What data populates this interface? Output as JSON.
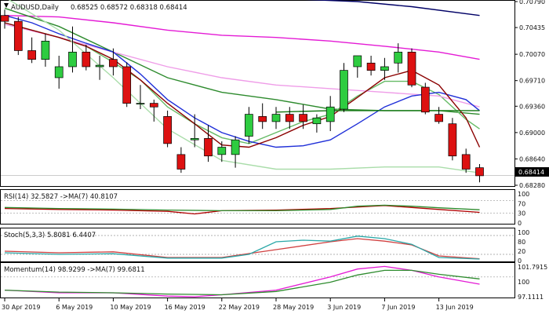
{
  "chart_data": {
    "type": "candlestick",
    "symbol_label": "AUDUSD,Daily",
    "ohlc_label": "0.68525 0.68572 0.68318 0.68414",
    "current_price": "0.68414",
    "current_price_value": 0.68414,
    "y_axis": {
      "min": 0.6828,
      "max": 0.7079,
      "ticks": [
        "0.70790",
        "0.70435",
        "0.70070",
        "0.69710",
        "0.69360",
        "0.69000",
        "0.68640",
        "0.68280"
      ]
    },
    "x_labels": [
      {
        "label": "30 Apr 2019",
        "bar": 0
      },
      {
        "label": "6 May 2019",
        "bar": 4
      },
      {
        "label": "10 May 2019",
        "bar": 8
      },
      {
        "label": "16 May 2019",
        "bar": 12
      },
      {
        "label": "22 May 2019",
        "bar": 16
      },
      {
        "label": "28 May 2019",
        "bar": 20
      },
      {
        "label": "3 Jun 2019",
        "bar": 24
      },
      {
        "label": "7 Jun 2019",
        "bar": 28
      },
      {
        "label": "13 Jun 2019",
        "bar": 32
      }
    ],
    "candles": [
      {
        "o": 0.706,
        "h": 0.7068,
        "l": 0.7042,
        "c": 0.7052
      },
      {
        "o": 0.7052,
        "h": 0.7058,
        "l": 0.7006,
        "c": 0.7012
      },
      {
        "o": 0.7012,
        "h": 0.703,
        "l": 0.6995,
        "c": 0.7
      },
      {
        "o": 0.7,
        "h": 0.7035,
        "l": 0.699,
        "c": 0.7025
      },
      {
        "o": 0.6975,
        "h": 0.7005,
        "l": 0.696,
        "c": 0.699
      },
      {
        "o": 0.699,
        "h": 0.7045,
        "l": 0.6982,
        "c": 0.701
      },
      {
        "o": 0.701,
        "h": 0.702,
        "l": 0.6985,
        "c": 0.699
      },
      {
        "o": 0.699,
        "h": 0.7005,
        "l": 0.6972,
        "c": 0.6992
      },
      {
        "o": 0.7,
        "h": 0.7015,
        "l": 0.6978,
        "c": 0.699
      },
      {
        "o": 0.699,
        "h": 0.6996,
        "l": 0.6935,
        "c": 0.694
      },
      {
        "o": 0.694,
        "h": 0.6965,
        "l": 0.6932,
        "c": 0.694
      },
      {
        "o": 0.694,
        "h": 0.6945,
        "l": 0.6915,
        "c": 0.6935
      },
      {
        "o": 0.6922,
        "h": 0.693,
        "l": 0.688,
        "c": 0.6885
      },
      {
        "o": 0.687,
        "h": 0.688,
        "l": 0.6845,
        "c": 0.685
      },
      {
        "o": 0.689,
        "h": 0.6925,
        "l": 0.688,
        "c": 0.6892
      },
      {
        "o": 0.6892,
        "h": 0.691,
        "l": 0.686,
        "c": 0.6868
      },
      {
        "o": 0.687,
        "h": 0.6888,
        "l": 0.686,
        "c": 0.688
      },
      {
        "o": 0.687,
        "h": 0.6895,
        "l": 0.6852,
        "c": 0.689
      },
      {
        "o": 0.6895,
        "h": 0.6935,
        "l": 0.6885,
        "c": 0.6925
      },
      {
        "o": 0.6922,
        "h": 0.694,
        "l": 0.6905,
        "c": 0.6915
      },
      {
        "o": 0.6915,
        "h": 0.6935,
        "l": 0.6905,
        "c": 0.6925
      },
      {
        "o": 0.6925,
        "h": 0.6935,
        "l": 0.6905,
        "c": 0.6915
      },
      {
        "o": 0.6925,
        "h": 0.6938,
        "l": 0.6905,
        "c": 0.6915
      },
      {
        "o": 0.6912,
        "h": 0.6925,
        "l": 0.69,
        "c": 0.692
      },
      {
        "o": 0.6915,
        "h": 0.695,
        "l": 0.6902,
        "c": 0.6935
      },
      {
        "o": 0.6932,
        "h": 0.6995,
        "l": 0.6928,
        "c": 0.6985
      },
      {
        "o": 0.699,
        "h": 0.7005,
        "l": 0.6975,
        "c": 0.7005
      },
      {
        "o": 0.6995,
        "h": 0.7005,
        "l": 0.6978,
        "c": 0.6985
      },
      {
        "o": 0.6985,
        "h": 0.7002,
        "l": 0.6972,
        "c": 0.699
      },
      {
        "o": 0.6995,
        "h": 0.7022,
        "l": 0.6982,
        "c": 0.701
      },
      {
        "o": 0.701,
        "h": 0.7015,
        "l": 0.6962,
        "c": 0.6965
      },
      {
        "o": 0.6962,
        "h": 0.6968,
        "l": 0.6925,
        "c": 0.6928
      },
      {
        "o": 0.6925,
        "h": 0.6935,
        "l": 0.6912,
        "c": 0.6915
      },
      {
        "o": 0.6912,
        "h": 0.692,
        "l": 0.6862,
        "c": 0.6868
      },
      {
        "o": 0.687,
        "h": 0.6878,
        "l": 0.6845,
        "c": 0.685
      },
      {
        "o": 0.6852,
        "h": 0.6857,
        "l": 0.6832,
        "c": 0.6841
      }
    ],
    "overlays": [
      {
        "color": "#000066",
        "values": [
          [
            22,
            0.7082
          ],
          [
            26,
            0.7079
          ],
          [
            30,
            0.7072
          ],
          [
            35,
            0.706
          ]
        ]
      },
      {
        "color": "#e41bd5",
        "values": [
          [
            0,
            0.706
          ],
          [
            4,
            0.7058
          ],
          [
            8,
            0.705
          ],
          [
            12,
            0.704
          ],
          [
            16,
            0.7033
          ],
          [
            20,
            0.703
          ],
          [
            24,
            0.7025
          ],
          [
            28,
            0.7018
          ],
          [
            32,
            0.701
          ],
          [
            35,
            0.7
          ]
        ]
      },
      {
        "color": "#2e8b2e",
        "values": [
          [
            0,
            0.707
          ],
          [
            4,
            0.7045
          ],
          [
            8,
            0.701
          ],
          [
            12,
            0.6975
          ],
          [
            16,
            0.6955
          ],
          [
            20,
            0.6945
          ],
          [
            24,
            0.6932
          ],
          [
            28,
            0.693
          ],
          [
            32,
            0.693
          ],
          [
            35,
            0.6925
          ]
        ]
      },
      {
        "color": "#66bb66",
        "values": [
          [
            0,
            0.705
          ],
          [
            2,
            0.704
          ],
          [
            4,
            0.703
          ],
          [
            6,
            0.7018
          ],
          [
            8,
            0.6996
          ],
          [
            10,
            0.6972
          ],
          [
            12,
            0.6935
          ],
          [
            14,
            0.6912
          ],
          [
            16,
            0.6893
          ],
          [
            18,
            0.6885
          ],
          [
            20,
            0.69
          ],
          [
            22,
            0.6915
          ],
          [
            24,
            0.6925
          ],
          [
            26,
            0.695
          ],
          [
            28,
            0.697
          ],
          [
            30,
            0.697
          ],
          [
            32,
            0.6952
          ],
          [
            34,
            0.6918
          ],
          [
            35,
            0.6905
          ]
        ]
      },
      {
        "color": "#ef9de8",
        "values": [
          [
            0,
            0.7048
          ],
          [
            4,
            0.703
          ],
          [
            8,
            0.701
          ],
          [
            12,
            0.699
          ],
          [
            16,
            0.6975
          ],
          [
            20,
            0.6965
          ],
          [
            24,
            0.696
          ],
          [
            28,
            0.6955
          ],
          [
            32,
            0.695
          ],
          [
            35,
            0.6935
          ]
        ]
      },
      {
        "color": "#1f2fd8",
        "values": [
          [
            0,
            0.706
          ],
          [
            2,
            0.705
          ],
          [
            4,
            0.7035
          ],
          [
            6,
            0.7022
          ],
          [
            8,
            0.701
          ],
          [
            10,
            0.698
          ],
          [
            12,
            0.6945
          ],
          [
            14,
            0.692
          ],
          [
            16,
            0.69
          ],
          [
            18,
            0.6888
          ],
          [
            20,
            0.688
          ],
          [
            22,
            0.6882
          ],
          [
            24,
            0.689
          ],
          [
            26,
            0.6912
          ],
          [
            28,
            0.6935
          ],
          [
            30,
            0.695
          ],
          [
            32,
            0.6955
          ],
          [
            34,
            0.6945
          ],
          [
            35,
            0.693
          ]
        ]
      },
      {
        "color": "#8b0000",
        "values": [
          [
            0,
            0.705
          ],
          [
            2,
            0.704
          ],
          [
            4,
            0.703
          ],
          [
            6,
            0.7018
          ],
          [
            8,
            0.7
          ],
          [
            10,
            0.6972
          ],
          [
            12,
            0.694
          ],
          [
            14,
            0.6912
          ],
          [
            16,
            0.6883
          ],
          [
            18,
            0.688
          ],
          [
            20,
            0.6893
          ],
          [
            22,
            0.691
          ],
          [
            24,
            0.6922
          ],
          [
            26,
            0.6948
          ],
          [
            28,
            0.6975
          ],
          [
            30,
            0.6985
          ],
          [
            32,
            0.6965
          ],
          [
            34,
            0.692
          ],
          [
            35,
            0.688
          ]
        ]
      },
      {
        "color": "#aaddaa",
        "values": [
          [
            0,
            0.7085
          ],
          [
            4,
            0.704
          ],
          [
            8,
            0.6975
          ],
          [
            12,
            0.6905
          ],
          [
            16,
            0.6862
          ],
          [
            20,
            0.685
          ],
          [
            24,
            0.685
          ],
          [
            28,
            0.6853
          ],
          [
            32,
            0.6853
          ],
          [
            35,
            0.6845
          ]
        ]
      },
      {
        "color": "#117711",
        "values": [
          [
            20,
            0.6928
          ],
          [
            24,
            0.693
          ],
          [
            28,
            0.693
          ],
          [
            32,
            0.693
          ],
          [
            35,
            0.693
          ]
        ]
      }
    ],
    "indicators": [
      {
        "label": "RSI(14) 32.5827 ->MA(7) 40.8107",
        "right_ticks": [
          "100",
          "70",
          "30",
          "0"
        ],
        "hline_values": [
          70,
          30
        ],
        "range": [
          0,
          100
        ],
        "lines": [
          {
            "color": "#b00000",
            "values": [
              [
                0,
                45
              ],
              [
                4,
                42
              ],
              [
                8,
                40
              ],
              [
                12,
                36
              ],
              [
                14,
                28
              ],
              [
                16,
                38
              ],
              [
                20,
                40
              ],
              [
                24,
                45
              ],
              [
                28,
                54
              ],
              [
                30,
                48
              ],
              [
                32,
                42
              ],
              [
                35,
                33
              ]
            ]
          },
          {
            "color": "#2e8b2e",
            "values": [
              [
                0,
                48
              ],
              [
                4,
                45
              ],
              [
                8,
                43
              ],
              [
                12,
                40
              ],
              [
                16,
                38
              ],
              [
                20,
                38
              ],
              [
                24,
                42
              ],
              [
                26,
                52
              ],
              [
                28,
                55
              ],
              [
                30,
                52
              ],
              [
                32,
                47
              ],
              [
                35,
                41
              ]
            ]
          }
        ]
      },
      {
        "label": "Stoch(5,3,3) 5.8081 6.4407",
        "right_ticks": [
          "100",
          "80",
          "20",
          "0"
        ],
        "hline_values": [
          80,
          20
        ],
        "range": [
          0,
          100
        ],
        "lines": [
          {
            "color": "#d04040",
            "values": [
              [
                0,
                30
              ],
              [
                4,
                25
              ],
              [
                8,
                28
              ],
              [
                12,
                10
              ],
              [
                16,
                10
              ],
              [
                20,
                35
              ],
              [
                24,
                60
              ],
              [
                26,
                70
              ],
              [
                28,
                62
              ],
              [
                30,
                50
              ],
              [
                32,
                15
              ],
              [
                35,
                6
              ]
            ]
          },
          {
            "color": "#2aa7a7",
            "values": [
              [
                0,
                25
              ],
              [
                4,
                20
              ],
              [
                8,
                22
              ],
              [
                12,
                8
              ],
              [
                16,
                8
              ],
              [
                18,
                20
              ],
              [
                20,
                60
              ],
              [
                22,
                65
              ],
              [
                24,
                62
              ],
              [
                26,
                78
              ],
              [
                28,
                70
              ],
              [
                30,
                52
              ],
              [
                32,
                10
              ],
              [
                35,
                5
              ]
            ]
          }
        ]
      },
      {
        "label": "Momentum(14) 98.9299 ->MA(7) 99.6811",
        "right_ticks": [
          "101.7915",
          "100",
          "97.1111"
        ],
        "hline_values": [
          100
        ],
        "range": [
          97.0,
          102.0
        ],
        "lines": [
          {
            "color": "#e41bd5",
            "values": [
              [
                0,
                98.0
              ],
              [
                4,
                97.6
              ],
              [
                8,
                97.6
              ],
              [
                12,
                97.1
              ],
              [
                14,
                97.0
              ],
              [
                16,
                97.3
              ],
              [
                20,
                98.0
              ],
              [
                24,
                100.0
              ],
              [
                26,
                101.2
              ],
              [
                28,
                101.6
              ],
              [
                30,
                101.0
              ],
              [
                32,
                100.0
              ],
              [
                35,
                98.9
              ]
            ]
          },
          {
            "color": "#2e8b2e",
            "values": [
              [
                0,
                98.0
              ],
              [
                4,
                97.7
              ],
              [
                8,
                97.6
              ],
              [
                12,
                97.4
              ],
              [
                16,
                97.3
              ],
              [
                20,
                97.8
              ],
              [
                24,
                99.2
              ],
              [
                26,
                100.3
              ],
              [
                28,
                101.0
              ],
              [
                30,
                101.0
              ],
              [
                32,
                100.4
              ],
              [
                35,
                99.7
              ]
            ]
          }
        ]
      }
    ]
  }
}
